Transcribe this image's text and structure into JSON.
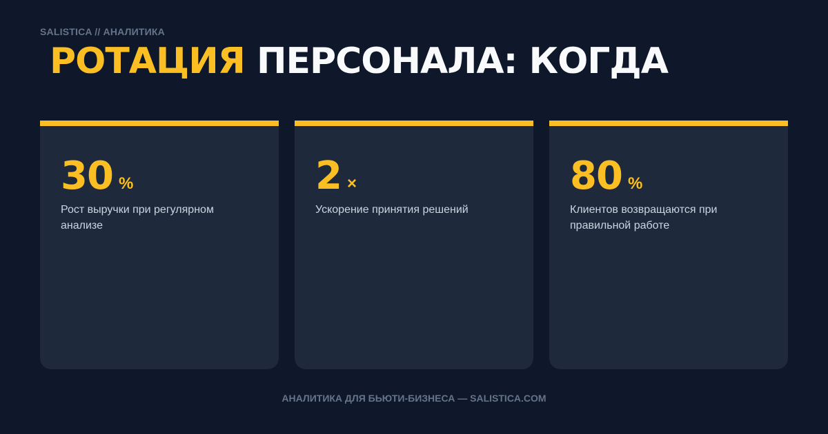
{
  "kicker": "SALISTICA // АНАЛИТИКА",
  "title": {
    "highlight": "РОТАЦИЯ",
    "rest": "ПЕРСОНАЛА: КОГДА"
  },
  "cards": [
    {
      "value": "30",
      "unit": "%",
      "description": "Рост выручки при регулярном анализе"
    },
    {
      "value": "2",
      "unit": "×",
      "description": "Ускорение принятия решений"
    },
    {
      "value": "80",
      "unit": "%",
      "description": "Клиентов возвращаются при правильной работе"
    }
  ],
  "footer": "АНАЛИТИКА ДЛЯ БЬЮТИ-БИЗНЕСА — SALISTICA.COM",
  "colors": {
    "background": "#0f172a",
    "card": "#1e293b",
    "accent": "#fbbf24"
  }
}
